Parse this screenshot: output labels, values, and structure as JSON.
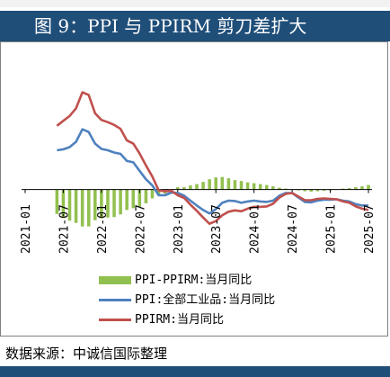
{
  "title": "图 9：PPI 与 PPIRM 剪刀差扩大",
  "source": "数据来源：中诚信国际整理",
  "chart_data": {
    "type": "line",
    "title": "",
    "xlabel": "",
    "ylabel": "",
    "x_tick_labels": [
      "2021-01",
      "2021-07",
      "2022-01",
      "2022-07",
      "2023-01",
      "2023-07",
      "2024-01",
      "2024-07",
      "2025-01",
      "2025-07"
    ],
    "x": [
      "2021-01",
      "2021-02",
      "2021-03",
      "2021-04",
      "2021-05",
      "2021-06",
      "2021-07",
      "2021-08",
      "2021-09",
      "2021-10",
      "2021-11",
      "2021-12",
      "2022-01",
      "2022-02",
      "2022-03",
      "2022-04",
      "2022-05",
      "2022-06",
      "2022-07",
      "2022-08",
      "2022-09",
      "2022-10",
      "2022-11",
      "2022-12",
      "2023-01",
      "2023-02",
      "2023-03",
      "2023-04",
      "2023-05",
      "2023-06",
      "2023-07",
      "2023-08",
      "2023-09",
      "2023-10",
      "2023-11",
      "2023-12",
      "2024-01",
      "2024-02",
      "2024-03",
      "2024-04",
      "2024-05",
      "2024-06",
      "2024-07",
      "2024-08",
      "2024-09",
      "2024-10",
      "2024-11",
      "2024-12",
      "2025-01",
      "2025-02",
      "2025-03",
      "2025-04",
      "2025-05",
      "2025-06",
      "2025-07"
    ],
    "ylim": [
      -12,
      30
    ],
    "grid": false,
    "legend_position": "bottom",
    "series": [
      {
        "name": "PPI-PPIRM:当月同比",
        "type": "bar",
        "color": "#92c04f",
        "values": [
          null,
          null,
          null,
          null,
          null,
          -5.5,
          -6.4,
          -7.0,
          -7.5,
          -8.3,
          -8.3,
          -6.9,
          -6.5,
          -6.3,
          -6.2,
          -5.6,
          -4.6,
          -4.2,
          -3.9,
          -3.1,
          -2.0,
          -1.1,
          -0.9,
          -0.4,
          0.5,
          0.5,
          0.9,
          1.2,
          1.7,
          2.3,
          2.7,
          2.8,
          2.5,
          2.1,
          1.9,
          1.6,
          1.4,
          1.2,
          1.0,
          0.7,
          0.4,
          0.2,
          0.0,
          -0.2,
          -0.4,
          -0.5,
          -0.4,
          -0.3,
          -0.2,
          0.0,
          0.2,
          0.3,
          0.5,
          0.7,
          1.0
        ]
      },
      {
        "name": "PPI:全部工业品:当月同比",
        "type": "line",
        "color": "#4f81bd",
        "values": [
          null,
          null,
          null,
          null,
          null,
          8.8,
          9.0,
          9.5,
          10.7,
          13.5,
          12.9,
          10.3,
          9.1,
          8.8,
          8.3,
          8.0,
          6.4,
          6.1,
          4.2,
          2.3,
          0.9,
          -1.3,
          -1.3,
          -0.7,
          -0.8,
          -1.4,
          -2.5,
          -3.6,
          -4.6,
          -5.4,
          -4.4,
          -3.0,
          -2.5,
          -2.6,
          -3.0,
          -2.7,
          -2.5,
          -2.7,
          -2.8,
          -2.5,
          -1.4,
          -0.8,
          -0.8,
          -1.8,
          -2.8,
          -2.9,
          -2.5,
          -2.3,
          -2.3,
          -2.2,
          -2.5,
          -2.7,
          -3.3,
          -3.6,
          -3.6
        ]
      },
      {
        "name": "PPIRM:当月同比",
        "type": "line",
        "color": "#c0504d",
        "values": [
          null,
          null,
          null,
          null,
          null,
          14.3,
          15.4,
          16.5,
          18.2,
          21.8,
          21.2,
          17.1,
          15.6,
          15.1,
          14.5,
          13.6,
          11.0,
          10.3,
          8.1,
          5.4,
          2.9,
          -0.2,
          -0.4,
          -0.3,
          -1.3,
          -1.9,
          -3.4,
          -4.8,
          -6.3,
          -7.7,
          -7.1,
          -5.8,
          -5.0,
          -4.7,
          -4.9,
          -4.3,
          -3.9,
          -3.9,
          -3.8,
          -3.2,
          -1.8,
          -1.0,
          -0.8,
          -1.6,
          -2.4,
          -2.4,
          -2.1,
          -2.0,
          -2.1,
          -2.2,
          -2.7,
          -3.0,
          -3.8,
          -4.3,
          -4.6
        ]
      }
    ]
  }
}
